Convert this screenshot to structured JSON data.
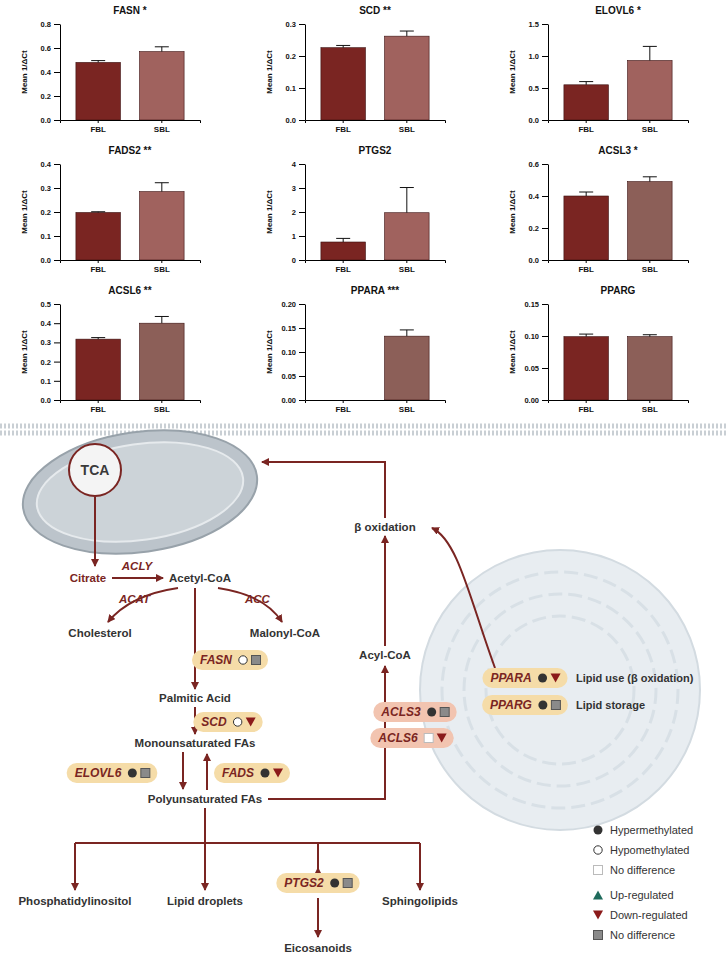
{
  "chart_data": [
    {
      "type": "bar",
      "title": "FASN *",
      "y_label": "Mean 1/ΔCt",
      "categories": [
        "FBL",
        "SBL"
      ],
      "values": [
        0.48,
        0.57
      ],
      "errors": [
        0.015,
        0.04
      ],
      "colors": [
        "#7a2522",
        "#a0625e"
      ],
      "ylim": [
        0,
        0.8
      ],
      "yticks": [
        {
          "value": 0,
          "label": "0.0"
        },
        {
          "value": 0.2,
          "label": "0.2"
        },
        {
          "value": 0.4,
          "label": "0.4"
        },
        {
          "value": 0.6,
          "label": "0.6"
        },
        {
          "value": 0.8,
          "label": "0.8"
        }
      ]
    },
    {
      "type": "bar",
      "title": "SCD **",
      "y_label": "Mean 1/ΔCt",
      "categories": [
        "FBL",
        "SBL"
      ],
      "values": [
        0.226,
        0.262
      ],
      "errors": [
        0.007,
        0.016
      ],
      "colors": [
        "#7a2522",
        "#a0625e"
      ],
      "ylim": [
        0,
        0.3
      ],
      "yticks": [
        {
          "value": 0,
          "label": "0.0"
        },
        {
          "value": 0.1,
          "label": "0.1"
        },
        {
          "value": 0.2,
          "label": "0.2"
        },
        {
          "value": 0.3,
          "label": "0.3"
        }
      ]
    },
    {
      "type": "bar",
      "title": "ELOVL6 *",
      "y_label": "Mean 1/ΔCt",
      "categories": [
        "FBL",
        "SBL"
      ],
      "values": [
        0.55,
        0.93
      ],
      "errors": [
        0.05,
        0.22
      ],
      "colors": [
        "#7a2522",
        "#a0625e"
      ],
      "ylim": [
        0,
        1.5
      ],
      "yticks": [
        {
          "value": 0,
          "label": "0.0"
        },
        {
          "value": 0.5,
          "label": "0.5"
        },
        {
          "value": 1,
          "label": "1.0"
        },
        {
          "value": 1.5,
          "label": "1.5"
        }
      ]
    },
    {
      "type": "bar",
      "title": "FADS2 **",
      "y_label": "Mean 1/ΔCt",
      "categories": [
        "FBL",
        "SBL"
      ],
      "values": [
        0.198,
        0.285
      ],
      "errors": [
        0.003,
        0.037
      ],
      "colors": [
        "#7a2522",
        "#a0625e"
      ],
      "ylim": [
        0,
        0.4
      ],
      "yticks": [
        {
          "value": 0,
          "label": "0.0"
        },
        {
          "value": 0.1,
          "label": "0.1"
        },
        {
          "value": 0.2,
          "label": "0.2"
        },
        {
          "value": 0.3,
          "label": "0.3"
        },
        {
          "value": 0.4,
          "label": "0.4"
        }
      ]
    },
    {
      "type": "bar",
      "title": "PTGS2",
      "y_label": "Mean 1/ΔCt",
      "categories": [
        "FBL",
        "SBL"
      ],
      "values": [
        0.75,
        1.97
      ],
      "errors": [
        0.15,
        1.05
      ],
      "colors": [
        "#7a2522",
        "#a0625e"
      ],
      "ylim": [
        0,
        4
      ],
      "yticks": [
        0,
        1,
        2,
        3,
        4
      ]
    },
    {
      "type": "bar",
      "title": "ACSL3 *",
      "y_label": "Mean 1/ΔCt",
      "categories": [
        "FBL",
        "SBL"
      ],
      "values": [
        0.4,
        0.49
      ],
      "errors": [
        0.025,
        0.03
      ],
      "colors": [
        "#7a2522",
        "#8c5f58"
      ],
      "ylim": [
        0,
        0.6
      ],
      "yticks": [
        {
          "value": 0,
          "label": "0.0"
        },
        {
          "value": 0.2,
          "label": "0.2"
        },
        {
          "value": 0.4,
          "label": "0.4"
        },
        {
          "value": 0.6,
          "label": "0.6"
        }
      ]
    },
    {
      "type": "bar",
      "title": "ACSL6 **",
      "y_label": "Mean 1/ΔCt",
      "categories": [
        "FBL",
        "SBL"
      ],
      "values": [
        0.317,
        0.4
      ],
      "errors": [
        0.008,
        0.035
      ],
      "colors": [
        "#7a2522",
        "#8c5f58"
      ],
      "ylim": [
        0,
        0.5
      ],
      "yticks": [
        {
          "value": 0,
          "label": "0.0"
        },
        {
          "value": 0.1,
          "label": "0.1"
        },
        {
          "value": 0.2,
          "label": "0.2"
        },
        {
          "value": 0.3,
          "label": "0.3"
        },
        {
          "value": 0.4,
          "label": "0.4"
        },
        {
          "value": 0.5,
          "label": "0.5"
        }
      ]
    },
    {
      "type": "bar",
      "title": "PPARA ***",
      "y_label": "Mean 1/ΔCt",
      "categories": [
        "FBL",
        "SBL"
      ],
      "values": [
        0,
        0.133
      ],
      "errors": [
        0,
        0.013
      ],
      "colors": [
        "#7a2522",
        "#8c5f58"
      ],
      "ylim": [
        0,
        0.2
      ],
      "yticks": [
        {
          "value": 0,
          "label": "0.00"
        },
        {
          "value": 0.05,
          "label": "0.05"
        },
        {
          "value": 0.1,
          "label": "0.10"
        },
        {
          "value": 0.15,
          "label": "0.15"
        },
        {
          "value": 0.2,
          "label": "0.20"
        }
      ]
    },
    {
      "type": "bar",
      "title": "PPARG",
      "y_label": "Mean 1/ΔCt",
      "categories": [
        "FBL",
        "SBL"
      ],
      "values": [
        0.099,
        0.099
      ],
      "errors": [
        0.004,
        0.003
      ],
      "colors": [
        "#7a2522",
        "#8c5f58"
      ],
      "ylim": [
        0,
        0.15
      ],
      "yticks": [
        {
          "value": 0,
          "label": "0.00"
        },
        {
          "value": 0.05,
          "label": "0.05"
        },
        {
          "value": 0.1,
          "label": "0.10"
        },
        {
          "value": 0.15,
          "label": "0.15"
        }
      ]
    }
  ],
  "diagram": {
    "metabolites": [
      "TCA",
      "Citrate",
      "Acetyl-CoA",
      "Cholesterol",
      "Malonyl-CoA",
      "Palmitic Acid",
      "Monounsaturated FAs",
      "Polyunsaturated FAs",
      "Acyl-CoA",
      "β oxidation",
      "Phosphatidylinositol",
      "Lipid droplets",
      "Eicosanoids",
      "Sphingolipids"
    ],
    "enzymes": [
      "ACLY",
      "ACAT",
      "ACC"
    ],
    "genes": [
      {
        "label": "FASN",
        "methylation": "Hypomethylated",
        "expression": "No difference",
        "color": "#f5dca8"
      },
      {
        "label": "SCD",
        "methylation": "Hypomethylated",
        "expression": "Down-regulated",
        "color": "#f5dca8"
      },
      {
        "label": "ELOVL6",
        "methylation": "Hypermethylated",
        "expression": "No difference",
        "color": "#f5dca8"
      },
      {
        "label": "FADS",
        "methylation": "Hypermethylated",
        "expression": "Down-regulated",
        "color": "#f5dca8"
      },
      {
        "label": "PTGS2",
        "methylation": "Hypermethylated",
        "expression": "No difference",
        "color": "#f5dca8"
      },
      {
        "label": "ACLS3",
        "methylation": "Hypermethylated",
        "expression": "No difference",
        "color": "#f2c4b0"
      },
      {
        "label": "ACLS6",
        "methylation": "No difference",
        "expression": "Down-regulated",
        "color": "#f2c4b0"
      },
      {
        "label": "PPARA",
        "methylation": "Hypermethylated",
        "expression": "Down-regulated",
        "color": "#f5dca8"
      },
      {
        "label": "PPARG",
        "methylation": "Hypermethylated",
        "expression": "No difference",
        "color": "#f5dca8"
      }
    ],
    "annotations": [
      "Lipid use (β oxidation)",
      "Lipid storage"
    ],
    "legend": {
      "methylation": [
        "Hypermethylated",
        "Hypomethylated",
        "No difference"
      ],
      "expression": [
        "Up-regulated",
        "Down-regulated",
        "No difference"
      ]
    }
  }
}
